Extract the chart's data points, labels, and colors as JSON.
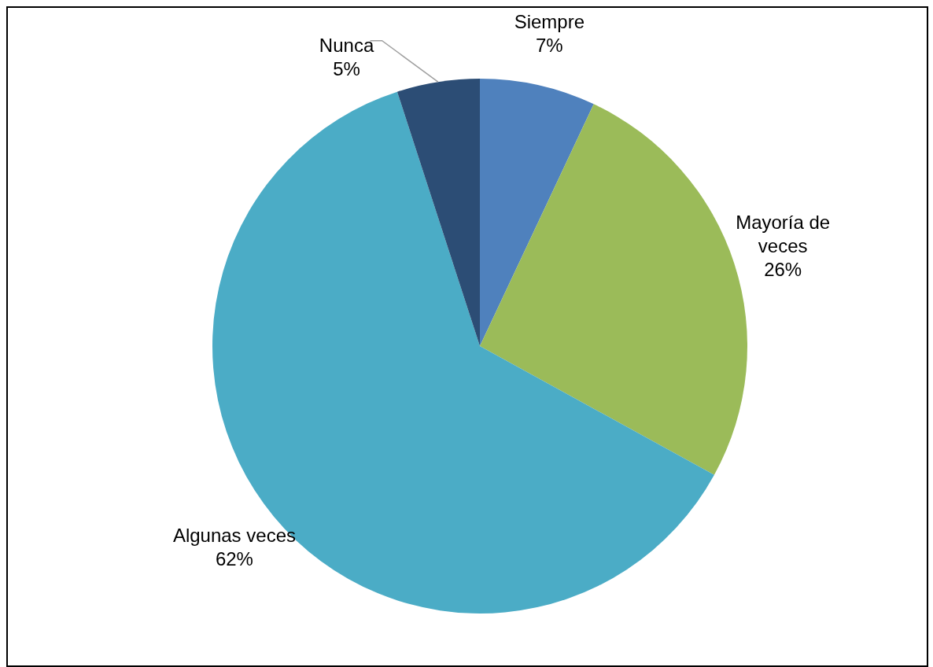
{
  "chart_data": {
    "type": "pie",
    "categories": [
      "Siempre",
      "Mayoría de veces",
      "Algunas veces",
      "Nunca"
    ],
    "values": [
      7,
      26,
      62,
      5
    ],
    "colors": [
      "#4f81bd",
      "#9bbb59",
      "#4bacc6",
      "#2c4d75"
    ],
    "value_labels": [
      "7%",
      "26%",
      "62%",
      "5%"
    ],
    "legend": false
  }
}
